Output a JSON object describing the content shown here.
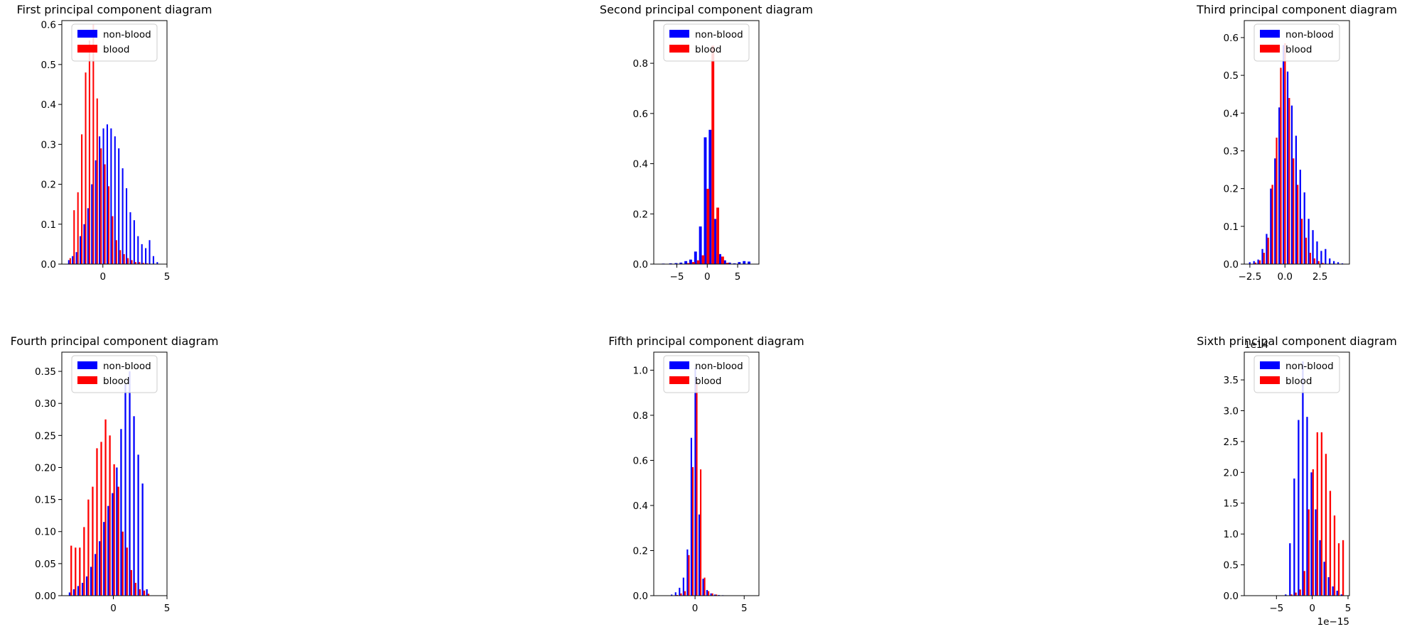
{
  "chart_data": [
    {
      "type": "bar",
      "title": "First principal component diagram",
      "xlim": [
        -3.2,
        5.0
      ],
      "ylim": [
        0,
        0.61
      ],
      "xticks": [
        "0",
        "5"
      ],
      "xtick_values": [
        0,
        5
      ],
      "yticks": [
        "0.0",
        "0.1",
        "0.2",
        "0.3",
        "0.4",
        "0.5",
        "0.6"
      ],
      "ytick_values": [
        0,
        0.1,
        0.2,
        0.3,
        0.4,
        0.5,
        0.6
      ],
      "offset_text": "",
      "legend": {
        "position": "top-center",
        "entries": [
          "non-blood",
          "blood"
        ]
      },
      "series": [
        {
          "name": "non-blood",
          "color": "#0000ff",
          "x": [
            -2.6,
            -2.3,
            -2.0,
            -1.7,
            -1.4,
            -1.1,
            -0.8,
            -0.5,
            -0.2,
            0.1,
            0.4,
            0.7,
            1.0,
            1.3,
            1.6,
            1.9,
            2.2,
            2.5,
            2.8,
            3.1,
            3.4,
            3.7,
            4.0,
            4.3
          ],
          "values": [
            0.01,
            0.02,
            0.03,
            0.07,
            0.1,
            0.14,
            0.2,
            0.26,
            0.32,
            0.34,
            0.35,
            0.34,
            0.32,
            0.29,
            0.24,
            0.19,
            0.13,
            0.11,
            0.07,
            0.05,
            0.04,
            0.06,
            0.02,
            0.005
          ]
        },
        {
          "name": "blood",
          "color": "#ff0000",
          "x": [
            -2.6,
            -2.3,
            -2.0,
            -1.7,
            -1.4,
            -1.1,
            -0.8,
            -0.5,
            -0.2,
            0.1,
            0.4,
            0.7,
            1.0,
            1.3,
            1.6,
            1.9,
            2.2,
            2.5,
            2.8,
            3.1,
            3.4,
            3.7,
            4.0,
            4.3
          ],
          "values": [
            0.015,
            0.135,
            0.18,
            0.325,
            0.48,
            0.56,
            0.6,
            0.415,
            0.29,
            0.25,
            0.195,
            0.12,
            0.06,
            0.035,
            0.025,
            0.015,
            0.01,
            0.005,
            0.005,
            0.003,
            0.002,
            0.0,
            0.0,
            0.0
          ]
        }
      ]
    },
    {
      "type": "bar",
      "title": "Second principal component diagram",
      "xlim": [
        -8.8,
        8.5
      ],
      "ylim": [
        0,
        0.97
      ],
      "xticks": [
        "−5",
        "0",
        "5"
      ],
      "xtick_values": [
        -5,
        0,
        5
      ],
      "yticks": [
        "0.0",
        "0.2",
        "0.4",
        "0.6",
        "0.8"
      ],
      "ytick_values": [
        0,
        0.2,
        0.4,
        0.6,
        0.8
      ],
      "offset_text": "",
      "legend": {
        "position": "top-center",
        "entries": [
          "non-blood",
          "blood"
        ]
      },
      "series": [
        {
          "name": "non-blood",
          "color": "#0000ff",
          "x": [
            -7.0,
            -5.8,
            -4.9,
            -4.1,
            -3.3,
            -2.5,
            -1.7,
            -0.9,
            -0.1,
            0.7,
            1.5,
            2.3,
            3.1,
            3.9,
            4.7,
            5.5,
            6.3,
            7.1
          ],
          "values": [
            0.002,
            0.003,
            0.004,
            0.006,
            0.012,
            0.018,
            0.05,
            0.15,
            0.505,
            0.535,
            0.18,
            0.04,
            0.015,
            0.006,
            0.003,
            0.008,
            0.012,
            0.01
          ]
        },
        {
          "name": "blood",
          "color": "#ff0000",
          "x": [
            -7.0,
            -5.8,
            -4.9,
            -4.1,
            -3.3,
            -2.5,
            -1.7,
            -0.9,
            -0.1,
            0.7,
            1.5,
            2.3,
            3.1,
            3.9,
            4.7,
            5.5,
            6.3,
            7.1
          ],
          "values": [
            0.0,
            0.0,
            0.0,
            0.0,
            0.004,
            0.008,
            0.015,
            0.035,
            0.3,
            0.87,
            0.225,
            0.03,
            0.005,
            0.0,
            0.0,
            0.0,
            0.0,
            0.0
          ]
        }
      ]
    },
    {
      "type": "bar",
      "title": "Third principal component diagram",
      "xlim": [
        -2.9,
        4.6
      ],
      "ylim": [
        0,
        0.645
      ],
      "xticks": [
        "−2.5",
        "0.0",
        "2.5"
      ],
      "xtick_values": [
        -2.5,
        0,
        2.5
      ],
      "yticks": [
        "0.0",
        "0.1",
        "0.2",
        "0.3",
        "0.4",
        "0.5",
        "0.6"
      ],
      "ytick_values": [
        0,
        0.1,
        0.2,
        0.3,
        0.4,
        0.5,
        0.6
      ],
      "offset_text": "",
      "legend": {
        "position": "top-center",
        "entries": [
          "non-blood",
          "blood"
        ]
      },
      "series": [
        {
          "name": "non-blood",
          "color": "#0000ff",
          "x": [
            -2.45,
            -2.15,
            -1.85,
            -1.55,
            -1.25,
            -0.95,
            -0.65,
            -0.35,
            -0.05,
            0.25,
            0.55,
            0.85,
            1.15,
            1.45,
            1.75,
            2.05,
            2.35,
            2.65,
            2.95,
            3.25,
            3.55,
            3.85,
            4.15
          ],
          "values": [
            0.005,
            0.008,
            0.012,
            0.04,
            0.08,
            0.2,
            0.28,
            0.415,
            0.58,
            0.51,
            0.42,
            0.34,
            0.25,
            0.19,
            0.12,
            0.09,
            0.06,
            0.035,
            0.04,
            0.015,
            0.008,
            0.005,
            0.002
          ]
        },
        {
          "name": "blood",
          "color": "#ff0000",
          "x": [
            -2.45,
            -2.15,
            -1.85,
            -1.55,
            -1.25,
            -0.95,
            -0.65,
            -0.35,
            -0.05,
            0.25,
            0.55,
            0.85,
            1.15,
            1.45,
            1.75,
            2.05,
            2.35,
            2.65,
            2.95,
            3.25,
            3.55,
            3.85,
            4.15
          ],
          "values": [
            0.0,
            0.004,
            0.01,
            0.03,
            0.07,
            0.21,
            0.335,
            0.52,
            0.585,
            0.44,
            0.28,
            0.21,
            0.12,
            0.07,
            0.03,
            0.015,
            0.008,
            0.003,
            0.0,
            0.0,
            0.0,
            0.0,
            0.0
          ]
        }
      ]
    },
    {
      "type": "bar",
      "title": "Fourth principal component diagram",
      "xlim": [
        -4.8,
        5.0
      ],
      "ylim": [
        0,
        0.38
      ],
      "xticks": [
        "0",
        "5"
      ],
      "xtick_values": [
        0,
        5
      ],
      "yticks": [
        "0.00",
        "0.05",
        "0.10",
        "0.15",
        "0.20",
        "0.25",
        "0.30",
        "0.35"
      ],
      "ytick_values": [
        0,
        0.05,
        0.1,
        0.15,
        0.2,
        0.25,
        0.3,
        0.35
      ],
      "offset_text": "",
      "legend": {
        "position": "top-center",
        "entries": [
          "non-blood",
          "blood"
        ]
      },
      "series": [
        {
          "name": "non-blood",
          "color": "#0000ff",
          "x": [
            -4.0,
            -3.6,
            -3.2,
            -2.8,
            -2.4,
            -2.0,
            -1.6,
            -1.2,
            -0.8,
            -0.4,
            0.0,
            0.4,
            0.8,
            1.2,
            1.6,
            2.0,
            2.4,
            2.8,
            3.2
          ],
          "values": [
            0.005,
            0.01,
            0.015,
            0.02,
            0.03,
            0.045,
            0.065,
            0.085,
            0.115,
            0.14,
            0.16,
            0.2,
            0.26,
            0.33,
            0.35,
            0.28,
            0.22,
            0.175,
            0.01
          ]
        },
        {
          "name": "blood",
          "color": "#ff0000",
          "x": [
            -4.0,
            -3.6,
            -3.2,
            -2.8,
            -2.4,
            -2.0,
            -1.6,
            -1.2,
            -0.8,
            -0.4,
            0.0,
            0.4,
            0.8,
            1.2,
            1.6,
            2.0,
            2.4,
            2.8,
            3.2
          ],
          "values": [
            0.078,
            0.075,
            0.075,
            0.107,
            0.15,
            0.17,
            0.23,
            0.24,
            0.275,
            0.25,
            0.205,
            0.17,
            0.1,
            0.075,
            0.04,
            0.02,
            0.01,
            0.008,
            0.003
          ]
        }
      ]
    },
    {
      "type": "bar",
      "title": "Fifth principal component diagram",
      "xlim": [
        -4.2,
        6.5
      ],
      "ylim": [
        0,
        1.08
      ],
      "xticks": [
        "0",
        "5"
      ],
      "xtick_values": [
        0,
        5
      ],
      "yticks": [
        "0.0",
        "0.2",
        "0.4",
        "0.6",
        "0.8",
        "1.0"
      ],
      "ytick_values": [
        0,
        0.2,
        0.4,
        0.6,
        0.8,
        1.0
      ],
      "offset_text": "",
      "legend": {
        "position": "top-center",
        "entries": [
          "non-blood",
          "blood"
        ]
      },
      "series": [
        {
          "name": "non-blood",
          "color": "#0000ff",
          "x": [
            -2.3,
            -1.9,
            -1.5,
            -1.1,
            -0.7,
            -0.3,
            0.1,
            0.5,
            0.9,
            1.3,
            1.7,
            2.1,
            2.5,
            2.9,
            3.3
          ],
          "values": [
            0.005,
            0.015,
            0.035,
            0.08,
            0.205,
            0.7,
            1.01,
            0.36,
            0.075,
            0.025,
            0.01,
            0.005,
            0.003,
            0.002,
            0.001
          ]
        },
        {
          "name": "blood",
          "color": "#ff0000",
          "x": [
            -2.3,
            -1.9,
            -1.5,
            -1.1,
            -0.7,
            -0.3,
            0.1,
            0.5,
            0.9,
            1.3,
            1.7,
            2.1,
            2.5,
            2.9,
            3.3
          ],
          "values": [
            0.0,
            0.003,
            0.01,
            0.02,
            0.18,
            0.57,
            0.95,
            0.56,
            0.08,
            0.02,
            0.01,
            0.005,
            0.0,
            0.0,
            0.0
          ]
        }
      ]
    },
    {
      "type": "bar",
      "title": "Sixth principal component diagram",
      "xlim": [
        -9.5,
        5.2
      ],
      "ylim": [
        0,
        3.95
      ],
      "xticks": [
        "−5",
        "0",
        "5"
      ],
      "xtick_values": [
        -5,
        0,
        5
      ],
      "yticks": [
        "0.0",
        "0.5",
        "1.0",
        "1.5",
        "2.0",
        "2.5",
        "3.0",
        "3.5"
      ],
      "ytick_values": [
        0,
        0.5,
        1.0,
        1.5,
        2.0,
        2.5,
        3.0,
        3.5
      ],
      "offset_text": "1e14",
      "x_offset_text": "1e−15",
      "legend": {
        "position": "top-center",
        "entries": [
          "non-blood",
          "blood"
        ]
      },
      "series": [
        {
          "name": "non-blood",
          "color": "#0000ff",
          "x": [
            -3.6,
            -3.0,
            -2.4,
            -1.8,
            -1.2,
            -0.6,
            0.0,
            0.6,
            1.2,
            1.8,
            2.4,
            3.0,
            3.6,
            4.2
          ],
          "values": [
            0.02,
            0.85,
            1.9,
            2.85,
            3.8,
            2.9,
            2.0,
            1.4,
            0.9,
            0.55,
            0.3,
            0.15,
            0.08,
            0.02
          ]
        },
        {
          "name": "blood",
          "color": "#ff0000",
          "x": [
            -3.6,
            -3.0,
            -2.4,
            -1.8,
            -1.2,
            -0.6,
            0.0,
            0.6,
            1.2,
            1.8,
            2.4,
            3.0,
            3.6,
            4.2
          ],
          "values": [
            0.0,
            0.02,
            0.05,
            0.1,
            0.4,
            1.4,
            2.05,
            2.65,
            2.65,
            2.3,
            1.7,
            1.3,
            0.85,
            0.9
          ]
        }
      ]
    }
  ]
}
